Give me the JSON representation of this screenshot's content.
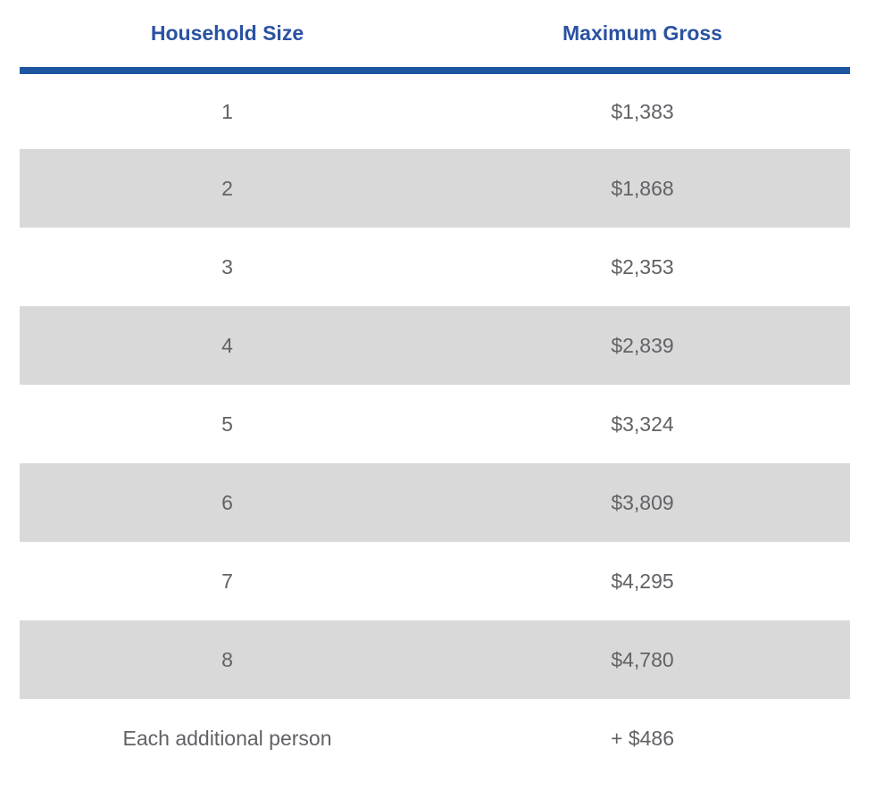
{
  "table": {
    "columns": [
      {
        "label": "Household Size"
      },
      {
        "label": "Maximum Gross"
      }
    ],
    "rows": [
      {
        "household_size": "1",
        "maximum_gross": "$1,383"
      },
      {
        "household_size": "2",
        "maximum_gross": "$1,868"
      },
      {
        "household_size": "3",
        "maximum_gross": "$2,353"
      },
      {
        "household_size": "4",
        "maximum_gross": "$2,839"
      },
      {
        "household_size": "5",
        "maximum_gross": "$3,324"
      },
      {
        "household_size": "6",
        "maximum_gross": "$3,809"
      },
      {
        "household_size": "7",
        "maximum_gross": "$4,295"
      },
      {
        "household_size": "8",
        "maximum_gross": "$4,780"
      },
      {
        "household_size": "Each additional person",
        "maximum_gross": "+ $486"
      }
    ]
  },
  "colors": {
    "header_text": "#2A52A2",
    "header_rule": "#1E56A0",
    "body_text": "#616266",
    "row_stripe": "#D9D9D9",
    "background": "#FFFFFF"
  },
  "chart_data": {
    "type": "table",
    "title": "",
    "columns": [
      "Household Size",
      "Maximum Gross"
    ],
    "rows": [
      [
        "1",
        "$1,383"
      ],
      [
        "2",
        "$1,868"
      ],
      [
        "3",
        "$2,353"
      ],
      [
        "4",
        "$2,839"
      ],
      [
        "5",
        "$3,324"
      ],
      [
        "6",
        "$3,809"
      ],
      [
        "7",
        "$4,295"
      ],
      [
        "8",
        "$4,780"
      ],
      [
        "Each additional person",
        "+ $486"
      ]
    ]
  }
}
